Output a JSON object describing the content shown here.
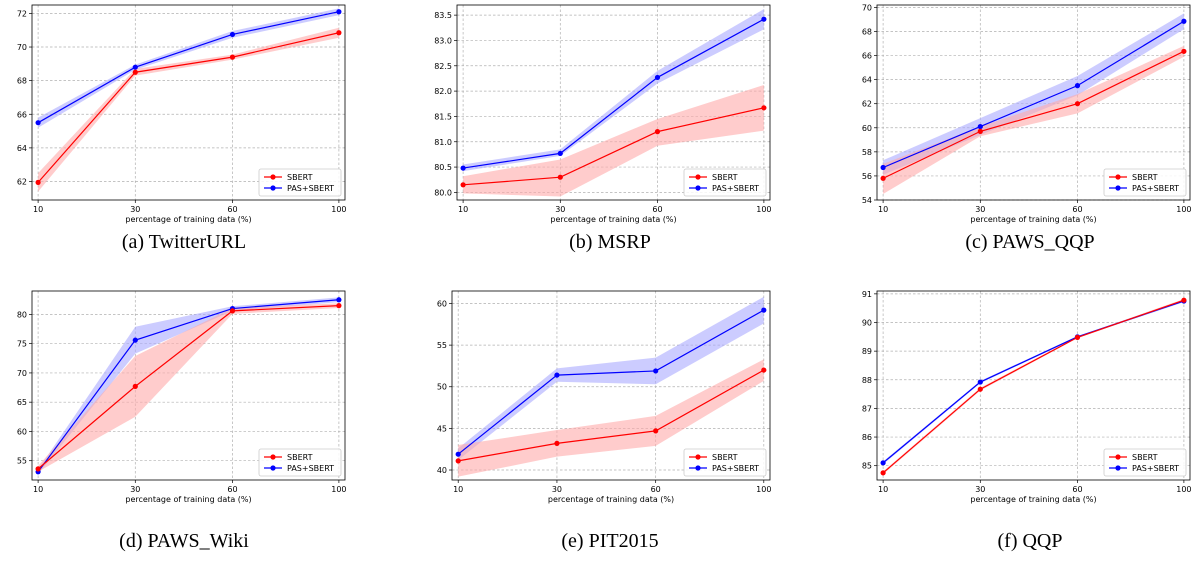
{
  "series_colors": {
    "SBERT": "#ff0000",
    "PAS+SBERT": "#0000ff"
  },
  "band_colors": {
    "SBERT": "#ffaaaa",
    "PAS+SBERT": "#aaaaff"
  },
  "chart_data": [
    {
      "type": "line",
      "caption": "(a) TwitterURL",
      "xlabel": "percentage of training data (%)",
      "ylabel": "",
      "categories": [
        "10",
        "30",
        "60",
        "100"
      ],
      "ylim": [
        60.9,
        72.5
      ],
      "yticks": [
        62,
        64,
        66,
        68,
        70,
        72
      ],
      "ytick_labels": [
        "62",
        "64",
        "66",
        "68",
        "70",
        "72"
      ],
      "legend_position": "lower right",
      "grid": true,
      "series": [
        {
          "name": "SBERT",
          "values": [
            61.95,
            68.5,
            69.4,
            70.85
          ],
          "lower": [
            61.4,
            68.3,
            69.25,
            70.55
          ],
          "upper": [
            62.5,
            68.7,
            69.55,
            71.15
          ]
        },
        {
          "name": "PAS+SBERT",
          "values": [
            65.5,
            68.8,
            70.75,
            72.1
          ],
          "lower": [
            65.2,
            68.65,
            70.55,
            71.9
          ],
          "upper": [
            65.8,
            68.95,
            70.95,
            72.3
          ]
        }
      ]
    },
    {
      "type": "line",
      "caption": "(b) MSRP",
      "xlabel": "percentage of training data (%)",
      "ylabel": "",
      "categories": [
        "10",
        "30",
        "60",
        "100"
      ],
      "ylim": [
        79.85,
        83.7
      ],
      "yticks": [
        80.0,
        80.5,
        81.0,
        81.5,
        82.0,
        82.5,
        83.0,
        83.5
      ],
      "ytick_labels": [
        "80.0",
        "80.5",
        "81.0",
        "81.5",
        "82.0",
        "82.5",
        "83.0",
        "83.5"
      ],
      "legend_position": "lower right",
      "grid": true,
      "series": [
        {
          "name": "SBERT",
          "values": [
            80.15,
            80.3,
            81.2,
            81.67
          ],
          "lower": [
            79.98,
            79.92,
            80.92,
            81.22
          ],
          "upper": [
            80.32,
            80.65,
            81.45,
            82.12
          ]
        },
        {
          "name": "PAS+SBERT",
          "values": [
            80.48,
            80.77,
            82.27,
            83.42
          ],
          "lower": [
            80.42,
            80.72,
            82.15,
            83.22
          ],
          "upper": [
            80.55,
            80.85,
            82.4,
            83.62
          ]
        }
      ]
    },
    {
      "type": "line",
      "caption": "(c) PAWS_QQP",
      "xlabel": "percentage of training data (%)",
      "ylabel": "",
      "categories": [
        "10",
        "30",
        "60",
        "100"
      ],
      "ylim": [
        54.0,
        70.2
      ],
      "yticks": [
        54,
        56,
        58,
        60,
        62,
        64,
        66,
        68,
        70
      ],
      "ytick_labels": [
        "54",
        "56",
        "58",
        "60",
        "62",
        "64",
        "66",
        "68",
        "70"
      ],
      "legend_position": "lower right",
      "grid": true,
      "series": [
        {
          "name": "SBERT",
          "values": [
            55.8,
            59.7,
            62.0,
            66.35
          ],
          "lower": [
            54.5,
            59.3,
            61.2,
            65.9
          ],
          "upper": [
            57.0,
            60.1,
            62.8,
            66.8
          ]
        },
        {
          "name": "PAS+SBERT",
          "values": [
            56.7,
            60.1,
            63.5,
            68.85
          ],
          "lower": [
            56.1,
            59.4,
            62.7,
            68.2
          ],
          "upper": [
            57.3,
            60.8,
            64.3,
            69.5
          ]
        }
      ]
    },
    {
      "type": "line",
      "caption": "(d) PAWS_Wiki",
      "xlabel": "percentage of training data (%)",
      "ylabel": "",
      "categories": [
        "10",
        "30",
        "60",
        "100"
      ],
      "ylim": [
        51.7,
        84.0
      ],
      "yticks": [
        55,
        60,
        65,
        70,
        75,
        80
      ],
      "ytick_labels": [
        "55",
        "60",
        "65",
        "70",
        "75",
        "80"
      ],
      "legend_position": "lower right",
      "grid": true,
      "series": [
        {
          "name": "SBERT",
          "values": [
            53.6,
            67.7,
            80.6,
            81.5
          ],
          "lower": [
            53.1,
            62.5,
            80.1,
            81.1
          ],
          "upper": [
            54.1,
            72.9,
            81.1,
            81.9
          ]
        },
        {
          "name": "PAS+SBERT",
          "values": [
            53.1,
            75.6,
            81.0,
            82.5
          ],
          "lower": [
            52.7,
            73.3,
            80.6,
            82.1
          ],
          "upper": [
            53.5,
            77.9,
            81.4,
            82.9
          ]
        }
      ]
    },
    {
      "type": "line",
      "caption": "(e) PIT2015",
      "xlabel": "percentage of training data (%)",
      "ylabel": "",
      "categories": [
        "10",
        "30",
        "60",
        "100"
      ],
      "ylim": [
        38.8,
        61.5
      ],
      "yticks": [
        40,
        45,
        50,
        55,
        60
      ],
      "ytick_labels": [
        "40",
        "45",
        "50",
        "55",
        "60"
      ],
      "legend_position": "lower right",
      "grid": true,
      "series": [
        {
          "name": "SBERT",
          "values": [
            41.1,
            43.2,
            44.7,
            52.0
          ],
          "lower": [
            39.2,
            41.6,
            42.9,
            50.7
          ],
          "upper": [
            43.0,
            44.8,
            46.5,
            53.3
          ]
        },
        {
          "name": "PAS+SBERT",
          "values": [
            41.9,
            51.4,
            51.9,
            59.2
          ],
          "lower": [
            41.2,
            50.6,
            50.3,
            57.6
          ],
          "upper": [
            42.6,
            52.2,
            53.5,
            60.8
          ]
        }
      ]
    },
    {
      "type": "line",
      "caption": "(f) QQP",
      "xlabel": "percentage of training data (%)",
      "ylabel": "",
      "categories": [
        "10",
        "30",
        "60",
        "100"
      ],
      "ylim": [
        84.5,
        91.1
      ],
      "yticks": [
        85,
        86,
        87,
        88,
        89,
        90,
        91
      ],
      "ytick_labels": [
        "85",
        "86",
        "87",
        "88",
        "89",
        "90",
        "91"
      ],
      "legend_position": "lower right",
      "grid": true,
      "series": [
        {
          "name": "SBERT",
          "values": [
            84.75,
            87.67,
            89.48,
            90.78
          ],
          "lower": [
            84.7,
            87.62,
            89.45,
            90.74
          ],
          "upper": [
            84.8,
            87.72,
            89.51,
            90.82
          ]
        },
        {
          "name": "PAS+SBERT",
          "values": [
            85.1,
            87.92,
            89.5,
            90.75
          ],
          "lower": [
            85.05,
            87.88,
            89.47,
            90.71
          ],
          "upper": [
            85.15,
            87.96,
            89.53,
            90.79
          ]
        }
      ]
    }
  ]
}
